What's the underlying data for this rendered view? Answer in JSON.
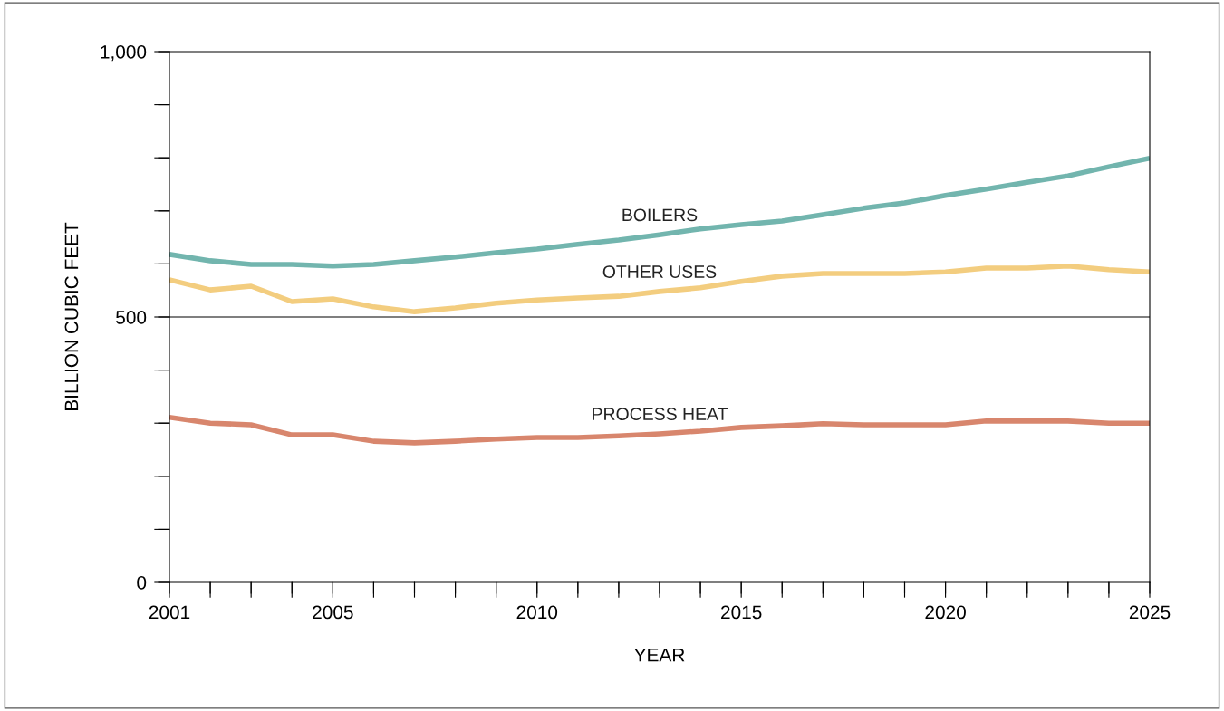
{
  "chart_data": {
    "type": "line",
    "xlabel": "YEAR",
    "ylabel": "BILLION CUBIC FEET",
    "x": [
      2001,
      2002,
      2003,
      2004,
      2005,
      2006,
      2007,
      2008,
      2009,
      2010,
      2011,
      2012,
      2013,
      2014,
      2015,
      2016,
      2017,
      2018,
      2019,
      2020,
      2021,
      2022,
      2023,
      2024,
      2025
    ],
    "series": [
      {
        "name": "BOILERS",
        "color": "#72b5ae",
        "values": [
          618,
          606,
          599,
          599,
          596,
          599,
          606,
          613,
          621,
          628,
          637,
          645,
          655,
          666,
          674,
          681,
          693,
          705,
          715,
          729,
          741,
          754,
          766,
          783,
          799
        ]
      },
      {
        "name": "OTHER USES",
        "color": "#f3cd7f",
        "values": [
          570,
          551,
          558,
          529,
          534,
          519,
          510,
          517,
          526,
          532,
          536,
          539,
          548,
          555,
          567,
          577,
          582,
          582,
          582,
          585,
          592,
          592,
          596,
          589,
          585
        ]
      },
      {
        "name": "PROCESS HEAT",
        "color": "#d8866d",
        "values": [
          311,
          300,
          297,
          278,
          278,
          266,
          263,
          266,
          270,
          273,
          273,
          276,
          280,
          285,
          292,
          295,
          299,
          297,
          297,
          297,
          304,
          304,
          304,
          300,
          300
        ]
      }
    ],
    "xlim": [
      2001,
      2025
    ],
    "xticks": [
      2001,
      {
        "value": 2002,
        "label": null
      },
      {
        "value": 2003,
        "label": null
      },
      {
        "value": 2004,
        "label": null
      },
      2005,
      {
        "value": 2006,
        "label": null
      },
      {
        "value": 2007,
        "label": null
      },
      {
        "value": 2008,
        "label": null
      },
      {
        "value": 2009,
        "label": null
      },
      2010,
      {
        "value": 2011,
        "label": null
      },
      {
        "value": 2012,
        "label": null
      },
      {
        "value": 2013,
        "label": null
      },
      {
        "value": 2014,
        "label": null
      },
      2015,
      {
        "value": 2016,
        "label": null
      },
      {
        "value": 2017,
        "label": null
      },
      {
        "value": 2018,
        "label": null
      },
      {
        "value": 2019,
        "label": null
      },
      2020,
      {
        "value": 2021,
        "label": null
      },
      {
        "value": 2022,
        "label": null
      },
      {
        "value": 2023,
        "label": null
      },
      {
        "value": 2024,
        "label": null
      },
      2025
    ],
    "ylim": [
      0,
      1000
    ],
    "yticks": [
      0,
      {
        "value": 100,
        "label": null
      },
      {
        "value": 200,
        "label": null
      },
      {
        "value": 300,
        "label": null
      },
      {
        "value": 400,
        "label": null
      },
      500,
      {
        "value": 600,
        "label": null
      },
      {
        "value": 700,
        "label": null
      },
      {
        "value": 800,
        "label": null
      },
      {
        "value": 900,
        "label": null
      },
      {
        "value": 1000,
        "label": "1,000"
      }
    ],
    "ref_lines": [
      {
        "axis": "y",
        "value": 500,
        "color": "#000000"
      }
    ],
    "grid": false,
    "legend": false,
    "marker": "none",
    "line_style": "solid"
  }
}
